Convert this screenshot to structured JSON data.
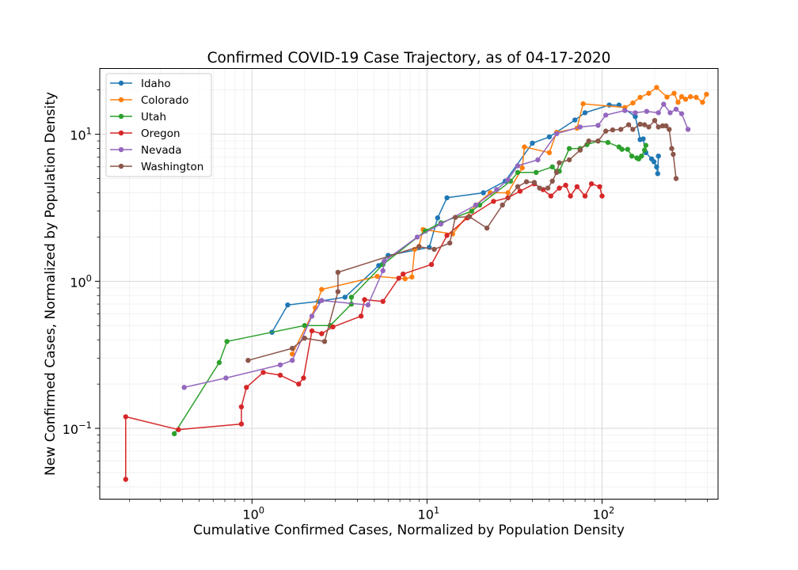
{
  "chart_data": {
    "type": "line",
    "title": "Confirmed COVID-19 Case Trajectory, as of 04-17-2020",
    "xlabel": "Cumulative Confirmed Cases, Normalized by Population Density",
    "ylabel": "New Confirmed Cases, Normalized by Population Density",
    "xscale": "log",
    "yscale": "log",
    "xlim": [
      0.135,
      460
    ],
    "ylim": [
      0.033,
      28
    ],
    "x_ticks": [
      {
        "value": 1,
        "base": "10",
        "exp": "0"
      },
      {
        "value": 10,
        "base": "10",
        "exp": "1"
      },
      {
        "value": 100,
        "base": "10",
        "exp": "2"
      }
    ],
    "y_ticks": [
      {
        "value": 0.1,
        "base": "10",
        "exp": "−1"
      },
      {
        "value": 1,
        "base": "10",
        "exp": "0"
      },
      {
        "value": 10,
        "base": "10",
        "exp": "1"
      }
    ],
    "grid": true,
    "legend_position": "top-left",
    "series": [
      {
        "name": "Idaho",
        "color": "#1f77b4",
        "points": [
          [
            1.3,
            0.45
          ],
          [
            1.6,
            0.69
          ],
          [
            2.4,
            0.73
          ],
          [
            3.4,
            0.78
          ],
          [
            5.3,
            1.28
          ],
          [
            6.0,
            1.5
          ],
          [
            10.3,
            1.7
          ],
          [
            11.5,
            2.7
          ],
          [
            13.0,
            3.7
          ],
          [
            21.0,
            4.0
          ],
          [
            28.0,
            4.8
          ],
          [
            40.0,
            8.7
          ],
          [
            50.0,
            9.6
          ],
          [
            70.0,
            12.5
          ],
          [
            80.0,
            14.0
          ],
          [
            110.0,
            15.8
          ],
          [
            125.0,
            15.8
          ],
          [
            155.0,
            13.2
          ],
          [
            165.0,
            9.2
          ],
          [
            172.0,
            9.3
          ],
          [
            178.0,
            7.5
          ],
          [
            192.0,
            6.8
          ],
          [
            198.0,
            6.5
          ],
          [
            205.0,
            6.0
          ],
          [
            208.0,
            5.4
          ],
          [
            210.0,
            7.1
          ]
        ]
      },
      {
        "name": "Colorado",
        "color": "#ff7f0e",
        "points": [
          [
            1.7,
            0.32
          ],
          [
            2.3,
            0.66
          ],
          [
            2.5,
            0.88
          ],
          [
            5.2,
            1.08
          ],
          [
            7.5,
            1.04
          ],
          [
            8.2,
            1.07
          ],
          [
            8.5,
            1.65
          ],
          [
            9.0,
            1.73
          ],
          [
            9.5,
            2.25
          ],
          [
            14.0,
            2.1
          ],
          [
            19.0,
            3.3
          ],
          [
            23.0,
            4.0
          ],
          [
            29.0,
            4.0
          ],
          [
            35.0,
            5.9
          ],
          [
            36.0,
            8.2
          ],
          [
            50.0,
            7.5
          ],
          [
            55.0,
            10.3
          ],
          [
            72.0,
            11.0
          ],
          [
            78.0,
            16.1
          ],
          [
            135.0,
            15.2
          ],
          [
            150.0,
            16.3
          ],
          [
            165.0,
            17.8
          ],
          [
            185.0,
            19.0
          ],
          [
            205.0,
            20.8
          ],
          [
            235.0,
            17.9
          ],
          [
            258.0,
            19.0
          ],
          [
            272.0,
            16.5
          ],
          [
            285.0,
            18.0
          ],
          [
            300.0,
            17.3
          ],
          [
            320.0,
            18.0
          ],
          [
            345.0,
            17.8
          ],
          [
            375.0,
            16.5
          ],
          [
            395.0,
            18.7
          ]
        ]
      },
      {
        "name": "Utah",
        "color": "#2ca02c",
        "points": [
          [
            0.36,
            0.092
          ],
          [
            0.65,
            0.28
          ],
          [
            0.72,
            0.39
          ],
          [
            2.0,
            0.5
          ],
          [
            2.8,
            0.5
          ],
          [
            3.7,
            0.7
          ],
          [
            3.7,
            0.78
          ],
          [
            5.6,
            1.3
          ],
          [
            9.8,
            2.2
          ],
          [
            12.0,
            2.5
          ],
          [
            18.0,
            3.0
          ],
          [
            20.0,
            3.3
          ],
          [
            30.0,
            4.8
          ],
          [
            33.0,
            5.5
          ],
          [
            42.0,
            5.5
          ],
          [
            52.0,
            6.0
          ],
          [
            55.0,
            5.6
          ],
          [
            57.0,
            5.6
          ],
          [
            65.0,
            8.0
          ],
          [
            75.0,
            8.0
          ],
          [
            82.0,
            8.5
          ],
          [
            95.0,
            9.0
          ],
          [
            108.0,
            8.8
          ],
          [
            125.0,
            8.2
          ],
          [
            130.0,
            7.9
          ],
          [
            140.0,
            7.9
          ],
          [
            148.0,
            7.1
          ],
          [
            158.0,
            6.9
          ],
          [
            162.0,
            6.8
          ],
          [
            168.0,
            7.1
          ],
          [
            175.0,
            7.8
          ],
          [
            178.0,
            8.4
          ]
        ]
      },
      {
        "name": "Oregon",
        "color": "#d62728",
        "points": [
          [
            0.19,
            0.045
          ],
          [
            0.19,
            0.12
          ],
          [
            0.38,
            0.098
          ],
          [
            0.87,
            0.107
          ],
          [
            0.87,
            0.14
          ],
          [
            0.93,
            0.19
          ],
          [
            1.16,
            0.24
          ],
          [
            1.45,
            0.23
          ],
          [
            1.85,
            0.2
          ],
          [
            1.97,
            0.22
          ],
          [
            2.2,
            0.46
          ],
          [
            2.5,
            0.44
          ],
          [
            2.9,
            0.49
          ],
          [
            4.2,
            0.58
          ],
          [
            4.4,
            0.75
          ],
          [
            5.6,
            0.73
          ],
          [
            6.9,
            1.05
          ],
          [
            7.3,
            1.12
          ],
          [
            10.6,
            1.3
          ],
          [
            13.0,
            2.05
          ],
          [
            17.0,
            2.7
          ],
          [
            24.0,
            3.5
          ],
          [
            29.0,
            3.7
          ],
          [
            34.0,
            4.1
          ],
          [
            41.0,
            4.6
          ],
          [
            46.0,
            4.2
          ],
          [
            51.0,
            3.8
          ],
          [
            57.0,
            4.3
          ],
          [
            62.0,
            4.5
          ],
          [
            66.0,
            3.8
          ],
          [
            72.0,
            4.4
          ],
          [
            80.0,
            3.8
          ],
          [
            87.0,
            4.6
          ],
          [
            97.0,
            4.4
          ],
          [
            100.0,
            3.8
          ]
        ]
      },
      {
        "name": "Nevada",
        "color": "#9467bd",
        "points": [
          [
            0.41,
            0.19
          ],
          [
            0.71,
            0.22
          ],
          [
            1.45,
            0.27
          ],
          [
            1.7,
            0.29
          ],
          [
            2.2,
            0.58
          ],
          [
            2.5,
            0.74
          ],
          [
            4.6,
            0.69
          ],
          [
            5.6,
            1.18
          ],
          [
            5.7,
            1.37
          ],
          [
            8.8,
            2.0
          ],
          [
            12.0,
            2.45
          ],
          [
            19.0,
            3.3
          ],
          [
            25.0,
            4.2
          ],
          [
            29.0,
            4.9
          ],
          [
            33.0,
            6.1
          ],
          [
            43.0,
            6.7
          ],
          [
            55.0,
            10.1
          ],
          [
            75.0,
            11.2
          ],
          [
            95.0,
            11.5
          ],
          [
            105.0,
            13.5
          ],
          [
            135.0,
            14.5
          ],
          [
            155.0,
            14.0
          ],
          [
            180.0,
            14.3
          ],
          [
            210.0,
            14.0
          ],
          [
            225.0,
            16.0
          ],
          [
            245.0,
            14.0
          ],
          [
            265.0,
            14.8
          ],
          [
            285.0,
            13.8
          ],
          [
            310.0,
            10.8
          ]
        ]
      },
      {
        "name": "Washington",
        "color": "#8c564b",
        "points": [
          [
            0.95,
            0.29
          ],
          [
            1.7,
            0.35
          ],
          [
            2.0,
            0.41
          ],
          [
            2.6,
            0.39
          ],
          [
            3.1,
            0.85
          ],
          [
            3.1,
            1.15
          ],
          [
            9.0,
            1.72
          ],
          [
            11.0,
            1.65
          ],
          [
            13.5,
            1.82
          ],
          [
            14.5,
            2.72
          ],
          [
            17.5,
            2.75
          ],
          [
            22.0,
            2.3
          ],
          [
            27.0,
            3.3
          ],
          [
            33.0,
            4.4
          ],
          [
            37.0,
            4.75
          ],
          [
            41.0,
            4.7
          ],
          [
            44.0,
            4.3
          ],
          [
            49.0,
            4.3
          ],
          [
            52.0,
            4.8
          ],
          [
            55.0,
            5.5
          ],
          [
            57.0,
            6.4
          ],
          [
            65.0,
            6.7
          ],
          [
            75.0,
            7.8
          ],
          [
            84.0,
            9.0
          ],
          [
            95.0,
            9.0
          ],
          [
            105.0,
            10.5
          ],
          [
            115.0,
            10.7
          ],
          [
            128.0,
            10.8
          ],
          [
            142.0,
            11.6
          ],
          [
            150.0,
            10.8
          ],
          [
            165.0,
            11.7
          ],
          [
            175.0,
            11.6
          ],
          [
            185.0,
            11.2
          ],
          [
            200.0,
            12.4
          ],
          [
            210.0,
            11.2
          ],
          [
            222.0,
            11.4
          ],
          [
            232.0,
            11.4
          ],
          [
            242.0,
            10.8
          ],
          [
            250.0,
            8.0
          ],
          [
            255.0,
            7.3
          ],
          [
            265.0,
            5.0
          ]
        ]
      }
    ]
  }
}
